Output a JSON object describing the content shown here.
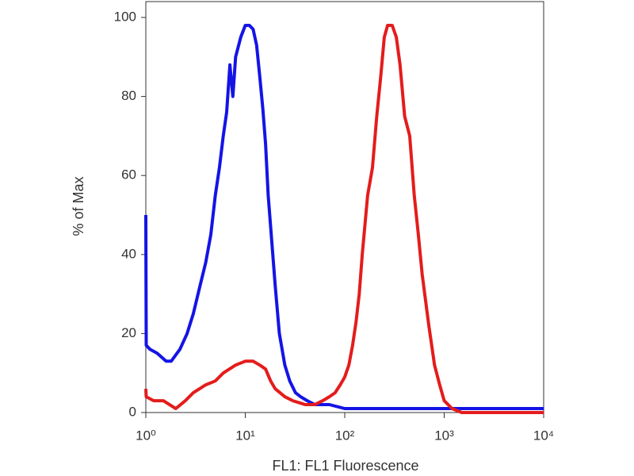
{
  "chart_data": {
    "type": "line",
    "x_label": "FL1: FL1 Fluorescence",
    "y_label": "% of Max",
    "xscale": "log",
    "xlim": [
      1,
      10000
    ],
    "ylim": [
      0,
      100
    ],
    "xticks": [
      {
        "value": 1,
        "label": "10⁰"
      },
      {
        "value": 10,
        "label": "10¹"
      },
      {
        "value": 100,
        "label": "10²"
      },
      {
        "value": 1000,
        "label": "10³"
      },
      {
        "value": 10000,
        "label": "10⁴"
      }
    ],
    "yticks": [
      0,
      20,
      40,
      60,
      80,
      100
    ],
    "series": [
      {
        "color": "#1414e6",
        "x": [
          1,
          1.01,
          1.1,
          1.3,
          1.6,
          1.8,
          2.2,
          2.6,
          3,
          3.5,
          4,
          4.5,
          5,
          5.5,
          6,
          6.5,
          7,
          7.5,
          8,
          9,
          10,
          11,
          12,
          13,
          14,
          15,
          16,
          17,
          18,
          20,
          22,
          25,
          28,
          32,
          36,
          42,
          50,
          70,
          100,
          200,
          500,
          1000,
          3000,
          10000
        ],
        "values": [
          50,
          17,
          16,
          15,
          13,
          13,
          16,
          20,
          25,
          32,
          38,
          45,
          55,
          62,
          70,
          76,
          88,
          80,
          90,
          95,
          98,
          98,
          97,
          93,
          85,
          77,
          68,
          55,
          47,
          32,
          20,
          12,
          8,
          5,
          4,
          3,
          2,
          2,
          1,
          1,
          1,
          1,
          1,
          1
        ]
      },
      {
        "color": "#e41c1c",
        "x": [
          1,
          1.01,
          1.2,
          1.5,
          2,
          2.5,
          3,
          4,
          5,
          6,
          8,
          10,
          12,
          14,
          16,
          18,
          20,
          25,
          30,
          40,
          50,
          60,
          70,
          80,
          90,
          100,
          110,
          120,
          130,
          140,
          150,
          170,
          190,
          210,
          230,
          250,
          270,
          300,
          330,
          360,
          400,
          450,
          500,
          550,
          600,
          700,
          800,
          900,
          1000,
          1200,
          1500,
          2000,
          10000
        ],
        "values": [
          6,
          4,
          3,
          3,
          1,
          3,
          5,
          7,
          8,
          10,
          12,
          13,
          13,
          12,
          11,
          8,
          6,
          4,
          3,
          2,
          2,
          3,
          4,
          5,
          7,
          9,
          12,
          17,
          23,
          30,
          40,
          55,
          62,
          75,
          85,
          95,
          98,
          98,
          95,
          88,
          75,
          70,
          55,
          45,
          35,
          22,
          12,
          7,
          3,
          1,
          0,
          0,
          0
        ]
      }
    ]
  }
}
